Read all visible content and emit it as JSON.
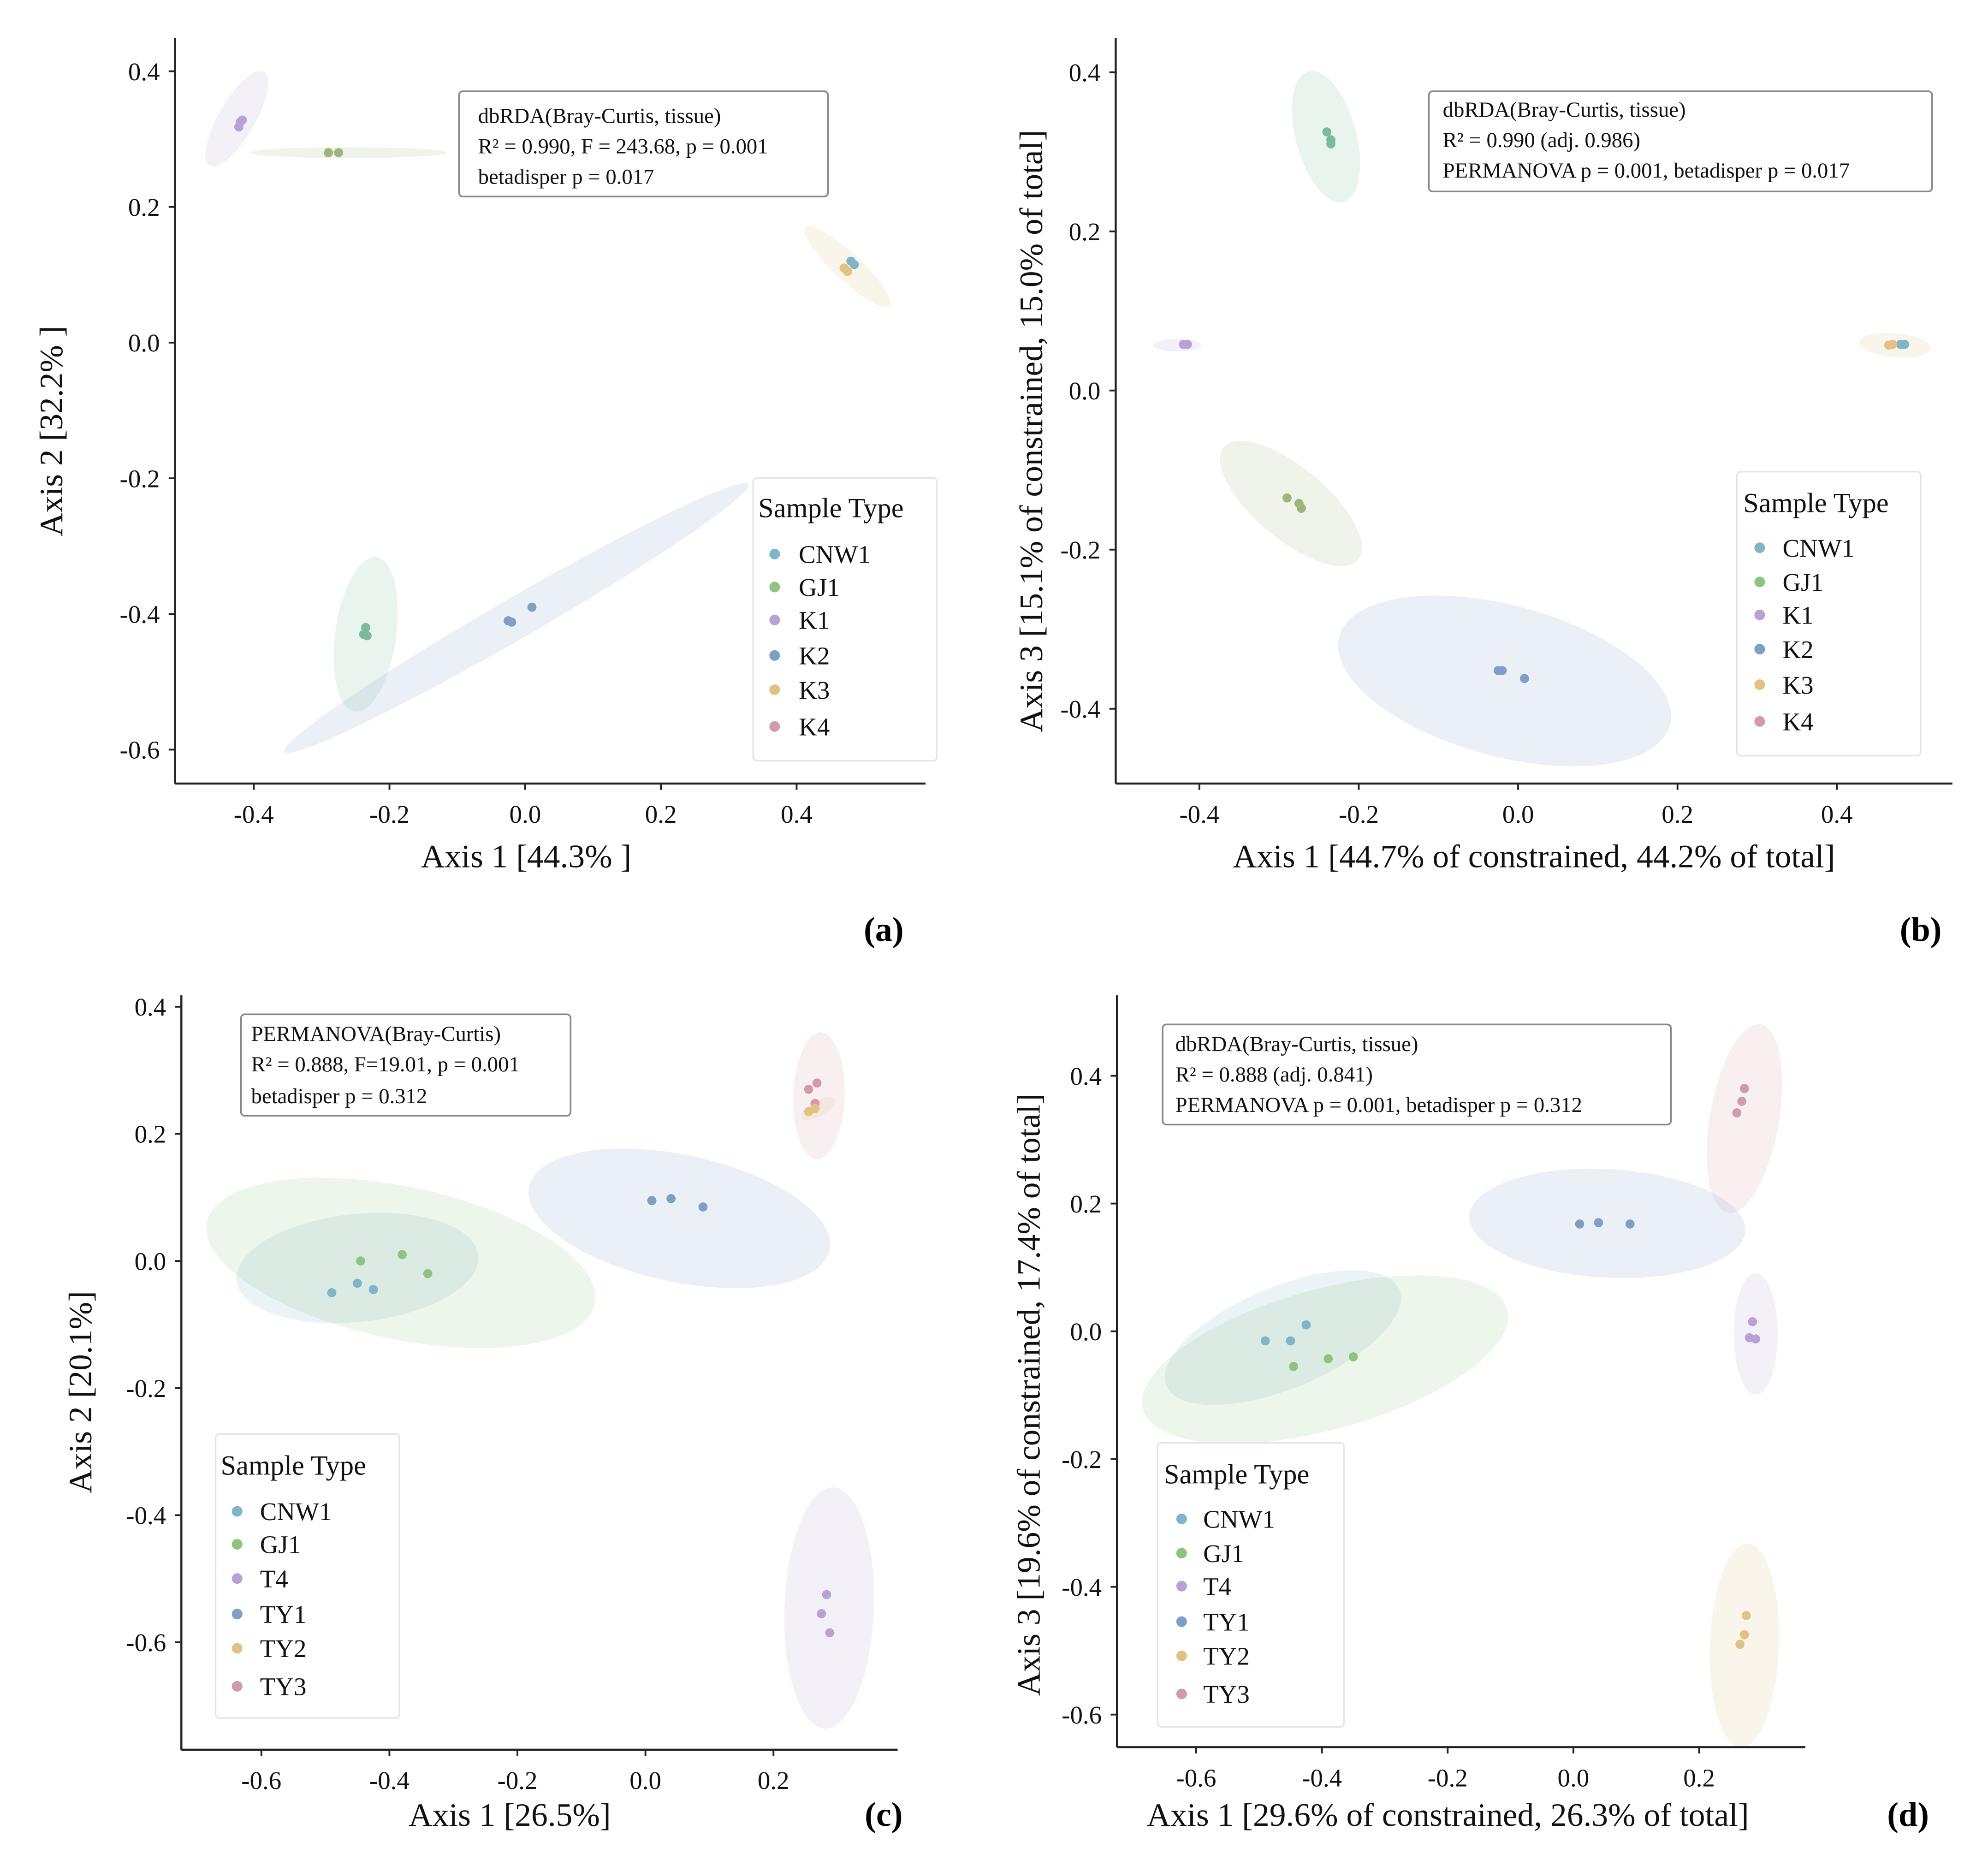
{
  "colors": {
    "CNW1": "#7fb4c9",
    "GJ1": "#8fc47f",
    "K1": "#b9a1d6",
    "K2": "#7f9fc6",
    "K3": "#e2c283",
    "K4": "#d39aa7",
    "T4": "#b9a1d6",
    "TY1": "#7f9fc6",
    "TY2": "#e2c283",
    "TY3": "#d39aa7",
    "GJ1_olive": "#9db67c",
    "GJ1_teal": "#7db99c"
  },
  "chart_data": [
    {
      "type": "scatter",
      "panel_label": "(a)",
      "xlabel": "Axis 1 [44.3% ]",
      "ylabel": "Axis 2  [32.2% ]",
      "xlim": [
        -0.516,
        0.59
      ],
      "ylim": [
        -0.65,
        0.449
      ],
      "xticks": [
        -0.4,
        -0.2,
        0.0,
        0.2,
        0.4
      ],
      "yticks": [
        -0.6,
        -0.4,
        -0.2,
        0.0,
        0.2,
        0.4
      ],
      "stats": [
        "dbRDA(Bray-Curtis, tissue)",
        "R² = 0.990, F = 243.68, p = 0.001",
        "betadisper p = 0.017"
      ],
      "legend_title": "Sample Type",
      "legend": [
        "CNW1",
        "GJ1",
        "K1",
        "K2",
        "K3",
        "K4"
      ],
      "legend_position": "right",
      "ellipses": [
        {
          "group": "K1",
          "cx": -0.425,
          "cy": 0.33,
          "a": 0.08,
          "b": 0.027,
          "angle": 60
        },
        {
          "group": "GJ1_olive",
          "cx": -0.26,
          "cy": 0.28,
          "a": 0.145,
          "b": 0.008,
          "angle": 0
        },
        {
          "group": "K3",
          "cx": 0.475,
          "cy": 0.112,
          "a": 0.085,
          "b": 0.02,
          "angle": -43
        },
        {
          "group": "GJ1_teal",
          "cx": -0.235,
          "cy": -0.43,
          "a": 0.115,
          "b": 0.045,
          "angle": 82
        },
        {
          "group": "K2",
          "cx": -0.013,
          "cy": -0.406,
          "a": 0.395,
          "b": 0.03,
          "angle": 30
        }
      ],
      "points": [
        {
          "group": "K1",
          "x": -0.42,
          "y": 0.325
        },
        {
          "group": "K1",
          "x": -0.417,
          "y": 0.328
        },
        {
          "group": "K1",
          "x": -0.422,
          "y": 0.318
        },
        {
          "group": "GJ1_olive",
          "x": -0.29,
          "y": 0.28
        },
        {
          "group": "GJ1_olive",
          "x": -0.275,
          "y": 0.28
        },
        {
          "group": "CNW1",
          "x": 0.48,
          "y": 0.12
        },
        {
          "group": "CNW1",
          "x": 0.485,
          "y": 0.115
        },
        {
          "group": "K3",
          "x": 0.47,
          "y": 0.11
        },
        {
          "group": "K3",
          "x": 0.475,
          "y": 0.105
        },
        {
          "group": "K2",
          "x": -0.025,
          "y": -0.41
        },
        {
          "group": "K2",
          "x": -0.02,
          "y": -0.412
        },
        {
          "group": "K2",
          "x": 0.01,
          "y": -0.39
        },
        {
          "group": "GJ1_teal",
          "x": -0.235,
          "y": -0.42
        },
        {
          "group": "GJ1_teal",
          "x": -0.238,
          "y": -0.43
        },
        {
          "group": "GJ1_teal",
          "x": -0.233,
          "y": -0.432
        }
      ]
    },
    {
      "type": "scatter",
      "panel_label": "(b)",
      "xlabel": "Axis 1 [44.7% of constrained, 44.2% of total]",
      "ylabel": "Axis 3 [15.1% of constrained, 15.0% of total]",
      "xlim": [
        -0.505,
        0.545
      ],
      "ylim": [
        -0.494,
        0.443
      ],
      "xticks": [
        -0.4,
        -0.2,
        0.0,
        0.2,
        0.4
      ],
      "yticks": [
        -0.4,
        -0.2,
        0.0,
        0.2,
        0.4
      ],
      "stats": [
        "dbRDA(Bray-Curtis, tissue)",
        "R² = 0.990 (adj. 0.986)",
        "PERMANOVA p = 0.001, betadisper p = 0.017"
      ],
      "legend_title": "Sample Type",
      "legend": [
        "CNW1",
        "GJ1",
        "K1",
        "K2",
        "K3",
        "K4"
      ],
      "legend_position": "right",
      "ellipses": [
        {
          "group": "K1",
          "cx": -0.428,
          "cy": 0.057,
          "a": 0.03,
          "b": 0.008,
          "angle": 0
        },
        {
          "group": "GJ1_teal",
          "cx": -0.241,
          "cy": 0.319,
          "a": 0.085,
          "b": 0.038,
          "angle": -75
        },
        {
          "group": "K3",
          "cx": 0.473,
          "cy": 0.057,
          "a": 0.045,
          "b": 0.015,
          "angle": -5
        },
        {
          "group": "GJ1_olive",
          "cx": -0.285,
          "cy": -0.142,
          "a": 0.11,
          "b": 0.045,
          "angle": -40
        },
        {
          "group": "K2",
          "cx": -0.017,
          "cy": -0.365,
          "a": 0.215,
          "b": 0.095,
          "angle": -15
        }
      ],
      "points": [
        {
          "group": "K1",
          "x": -0.42,
          "y": 0.058
        },
        {
          "group": "K1",
          "x": -0.415,
          "y": 0.058
        },
        {
          "group": "GJ1_teal",
          "x": -0.24,
          "y": 0.325
        },
        {
          "group": "GJ1_teal",
          "x": -0.235,
          "y": 0.315
        },
        {
          "group": "GJ1_teal",
          "x": -0.235,
          "y": 0.31
        },
        {
          "group": "CNW1",
          "x": 0.485,
          "y": 0.058
        },
        {
          "group": "CNW1",
          "x": 0.48,
          "y": 0.058
        },
        {
          "group": "K3",
          "x": 0.465,
          "y": 0.057
        },
        {
          "group": "K3",
          "x": 0.47,
          "y": 0.058
        },
        {
          "group": "GJ1_olive",
          "x": -0.29,
          "y": -0.135
        },
        {
          "group": "GJ1_olive",
          "x": -0.275,
          "y": -0.142
        },
        {
          "group": "GJ1_olive",
          "x": -0.272,
          "y": -0.148
        },
        {
          "group": "K2",
          "x": -0.025,
          "y": -0.352
        },
        {
          "group": "K2",
          "x": -0.02,
          "y": -0.352
        },
        {
          "group": "K2",
          "x": 0.008,
          "y": -0.362
        }
      ]
    },
    {
      "type": "scatter",
      "panel_label": "(c)",
      "xlabel": "Axis 1 [26.5%]",
      "ylabel": "Axis 2  [20.1%]",
      "xlim": [
        -0.725,
        0.394
      ],
      "ylim": [
        -0.769,
        0.418
      ],
      "xticks": [
        -0.6,
        -0.4,
        -0.2,
        0.0,
        0.2
      ],
      "yticks": [
        -0.6,
        -0.4,
        -0.2,
        0.0,
        0.2,
        0.4
      ],
      "stats": [
        "PERMANOVA(Bray-Curtis)",
        "R² = 0.888, F=19.01, p = 0.001",
        "betadisper p = 0.312"
      ],
      "legend_title": "Sample Type",
      "legend": [
        "CNW1",
        "GJ1",
        "T4",
        "TY1",
        "TY2",
        "TY3"
      ],
      "legend_position": "lower-left",
      "ellipses": [
        {
          "group": "GJ1",
          "cx": -0.382,
          "cy": -0.003,
          "a": 0.31,
          "b": 0.12,
          "angle": -12
        },
        {
          "group": "CNW1",
          "cx": -0.45,
          "cy": -0.011,
          "a": 0.19,
          "b": 0.085,
          "angle": 6
        },
        {
          "group": "TY1",
          "cx": 0.053,
          "cy": 0.067,
          "a": 0.24,
          "b": 0.1,
          "angle": -12
        },
        {
          "group": "TY3",
          "cx": 0.271,
          "cy": 0.26,
          "a": 0.1,
          "b": 0.04,
          "angle": 88
        },
        {
          "group": "TY2",
          "cx": 0.27,
          "cy": 0.24,
          "a": 0.03,
          "b": 0.012,
          "angle": 30
        },
        {
          "group": "T4",
          "cx": 0.287,
          "cy": -0.546,
          "a": 0.19,
          "b": 0.07,
          "angle": 88
        }
      ],
      "points": [
        {
          "group": "GJ1",
          "x": -0.445,
          "y": 0.0
        },
        {
          "group": "GJ1",
          "x": -0.38,
          "y": 0.01
        },
        {
          "group": "GJ1",
          "x": -0.34,
          "y": -0.02
        },
        {
          "group": "CNW1",
          "x": -0.49,
          "y": -0.05
        },
        {
          "group": "CNW1",
          "x": -0.45,
          "y": -0.035
        },
        {
          "group": "CNW1",
          "x": -0.425,
          "y": -0.045
        },
        {
          "group": "TY1",
          "x": 0.01,
          "y": 0.095
        },
        {
          "group": "TY1",
          "x": 0.04,
          "y": 0.098
        },
        {
          "group": "TY1",
          "x": 0.09,
          "y": 0.085
        },
        {
          "group": "TY3",
          "x": 0.255,
          "y": 0.27
        },
        {
          "group": "TY3",
          "x": 0.268,
          "y": 0.28
        },
        {
          "group": "TY3",
          "x": 0.265,
          "y": 0.248
        },
        {
          "group": "TY2",
          "x": 0.255,
          "y": 0.235
        },
        {
          "group": "TY2",
          "x": 0.265,
          "y": 0.24
        },
        {
          "group": "T4",
          "x": 0.283,
          "y": -0.525
        },
        {
          "group": "T4",
          "x": 0.275,
          "y": -0.555
        },
        {
          "group": "T4",
          "x": 0.288,
          "y": -0.585
        }
      ]
    },
    {
      "type": "scatter",
      "panel_label": "(d)",
      "xlabel": "Axis 1 [29.6% of constrained, 26.3% of total]",
      "ylabel": "Axis 3 [19.6% of constrained, 17.4% of total]",
      "xlim": [
        -0.726,
        0.369
      ],
      "ylim": [
        -0.651,
        0.526
      ],
      "xticks": [
        -0.6,
        -0.4,
        -0.2,
        0.0,
        0.2
      ],
      "yticks": [
        -0.6,
        -0.4,
        -0.2,
        0.0,
        0.2,
        0.4
      ],
      "stats": [
        "dbRDA(Bray-Curtis, tissue)",
        "R² = 0.888 (adj. 0.841)",
        "PERMANOVA p = 0.001, betadisper p = 0.312"
      ],
      "legend_title": "Sample Type",
      "legend": [
        "CNW1",
        "GJ1",
        "T4",
        "TY1",
        "TY2",
        "TY3"
      ],
      "legend_position": "lower-left",
      "ellipses": [
        {
          "group": "TY1",
          "cx": 0.054,
          "cy": 0.169,
          "a": 0.22,
          "b": 0.085,
          "angle": -3
        },
        {
          "group": "GJ1",
          "cx": -0.395,
          "cy": -0.044,
          "a": 0.3,
          "b": 0.11,
          "angle": 15
        },
        {
          "group": "CNW1",
          "cx": -0.462,
          "cy": -0.01,
          "a": 0.2,
          "b": 0.08,
          "angle": 22
        },
        {
          "group": "TY3",
          "cx": 0.272,
          "cy": 0.333,
          "a": 0.15,
          "b": 0.055,
          "angle": 80
        },
        {
          "group": "T4",
          "cx": 0.29,
          "cy": -0.004,
          "a": 0.095,
          "b": 0.035,
          "angle": 90
        },
        {
          "group": "TY2",
          "cx": 0.272,
          "cy": -0.492,
          "a": 0.16,
          "b": 0.055,
          "angle": 88
        }
      ],
      "points": [
        {
          "group": "TY1",
          "x": 0.01,
          "y": 0.168
        },
        {
          "group": "TY1",
          "x": 0.04,
          "y": 0.17
        },
        {
          "group": "TY1",
          "x": 0.09,
          "y": 0.168
        },
        {
          "group": "CNW1",
          "x": -0.49,
          "y": -0.015
        },
        {
          "group": "CNW1",
          "x": -0.45,
          "y": -0.015
        },
        {
          "group": "CNW1",
          "x": -0.425,
          "y": 0.01
        },
        {
          "group": "GJ1",
          "x": -0.445,
          "y": -0.055
        },
        {
          "group": "GJ1",
          "x": -0.39,
          "y": -0.043
        },
        {
          "group": "GJ1",
          "x": -0.35,
          "y": -0.04
        },
        {
          "group": "TY3",
          "x": 0.26,
          "y": 0.342
        },
        {
          "group": "TY3",
          "x": 0.268,
          "y": 0.36
        },
        {
          "group": "TY3",
          "x": 0.272,
          "y": 0.38
        },
        {
          "group": "T4",
          "x": 0.285,
          "y": 0.015
        },
        {
          "group": "T4",
          "x": 0.28,
          "y": -0.01
        },
        {
          "group": "T4",
          "x": 0.29,
          "y": -0.012
        },
        {
          "group": "TY2",
          "x": 0.275,
          "y": -0.445
        },
        {
          "group": "TY2",
          "x": 0.272,
          "y": -0.475
        },
        {
          "group": "TY2",
          "x": 0.265,
          "y": -0.49
        }
      ]
    }
  ]
}
